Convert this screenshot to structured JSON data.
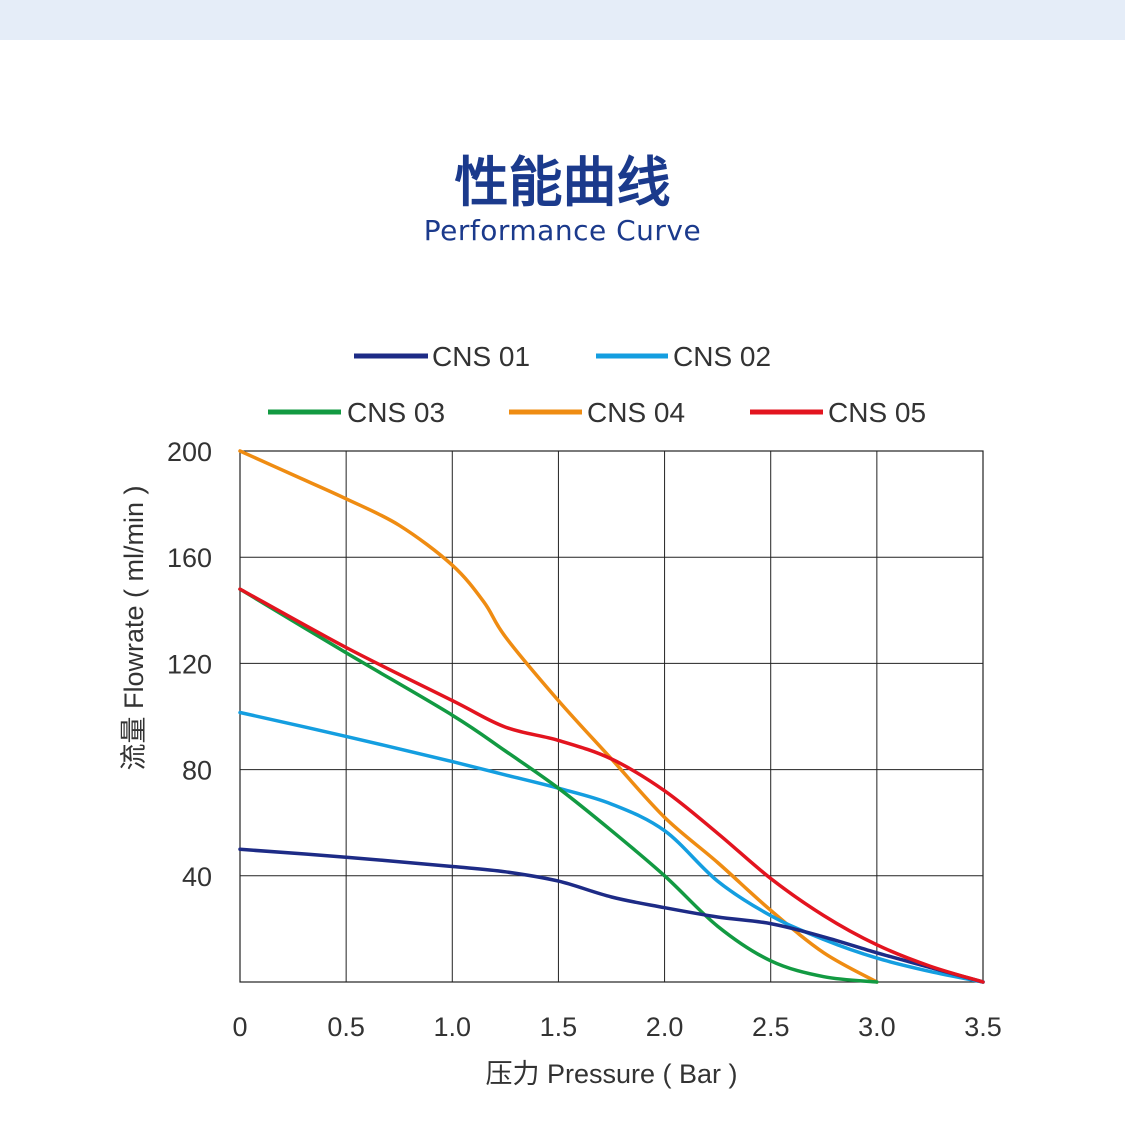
{
  "header": {
    "title_zh": "性能曲线",
    "title_en": "Performance Curve"
  },
  "chart_data": {
    "type": "line",
    "title": "",
    "xlabel": "压力 Pressure ( Bar )",
    "ylabel": "流量 Flowrate ( ml/min )",
    "xlim": [
      0,
      3.5
    ],
    "ylim": [
      0,
      200
    ],
    "x_ticks": [
      {
        "value": 0,
        "label": "0"
      },
      {
        "value": 0.5,
        "label": "0.5"
      },
      {
        "value": 1.0,
        "label": "1.0"
      },
      {
        "value": 1.5,
        "label": "1.5"
      },
      {
        "value": 2.0,
        "label": "2.0"
      },
      {
        "value": 2.5,
        "label": "2.5"
      },
      {
        "value": 3.0,
        "label": "3.0"
      },
      {
        "value": 3.5,
        "label": "3.5"
      }
    ],
    "y_ticks": [
      {
        "value": 40,
        "label": "40"
      },
      {
        "value": 80,
        "label": "80"
      },
      {
        "value": 120,
        "label": "120"
      },
      {
        "value": 160,
        "label": "160"
      },
      {
        "value": 200,
        "label": "200"
      }
    ],
    "grid": true,
    "legend_position": "top",
    "series": [
      {
        "name": "CNS 01",
        "color": "#1d2b86",
        "points": [
          [
            0,
            50
          ],
          [
            0.5,
            47
          ],
          [
            1.0,
            43.5
          ],
          [
            1.25,
            41.5
          ],
          [
            1.5,
            38
          ],
          [
            1.75,
            32
          ],
          [
            2.0,
            28
          ],
          [
            2.25,
            24.5
          ],
          [
            2.5,
            22
          ],
          [
            2.75,
            17
          ],
          [
            3.0,
            11
          ],
          [
            3.25,
            5.5
          ],
          [
            3.5,
            0
          ]
        ]
      },
      {
        "name": "CNS 02",
        "color": "#149ee0",
        "points": [
          [
            0,
            101.5
          ],
          [
            0.5,
            92.5
          ],
          [
            1.0,
            83
          ],
          [
            1.25,
            78
          ],
          [
            1.5,
            73
          ],
          [
            1.75,
            67
          ],
          [
            2.0,
            57
          ],
          [
            2.25,
            38
          ],
          [
            2.5,
            25
          ],
          [
            2.75,
            16
          ],
          [
            3.0,
            9
          ],
          [
            3.25,
            4
          ],
          [
            3.5,
            0
          ]
        ]
      },
      {
        "name": "CNS 03",
        "color": "#129a42",
        "points": [
          [
            0,
            148
          ],
          [
            0.5,
            124
          ],
          [
            1.0,
            100.5
          ],
          [
            1.25,
            87
          ],
          [
            1.5,
            73
          ],
          [
            1.75,
            57
          ],
          [
            2.0,
            40
          ],
          [
            2.25,
            21
          ],
          [
            2.5,
            8
          ],
          [
            2.75,
            2
          ],
          [
            3.0,
            0
          ]
        ]
      },
      {
        "name": "CNS 04",
        "color": "#ef8c12",
        "points": [
          [
            0,
            200
          ],
          [
            0.25,
            191
          ],
          [
            0.5,
            182
          ],
          [
            0.75,
            172
          ],
          [
            1.0,
            157
          ],
          [
            1.15,
            143
          ],
          [
            1.25,
            130
          ],
          [
            1.5,
            106
          ],
          [
            1.75,
            84
          ],
          [
            2.0,
            62
          ],
          [
            2.25,
            45
          ],
          [
            2.5,
            27
          ],
          [
            2.75,
            11
          ],
          [
            3.0,
            0
          ]
        ]
      },
      {
        "name": "CNS 05",
        "color": "#e3141f",
        "points": [
          [
            0,
            148
          ],
          [
            0.5,
            126
          ],
          [
            1.0,
            106
          ],
          [
            1.25,
            96
          ],
          [
            1.5,
            91
          ],
          [
            1.75,
            84
          ],
          [
            2.0,
            72
          ],
          [
            2.25,
            56
          ],
          [
            2.5,
            39
          ],
          [
            2.75,
            25
          ],
          [
            3.0,
            14
          ],
          [
            3.25,
            6
          ],
          [
            3.5,
            0
          ]
        ]
      }
    ]
  }
}
